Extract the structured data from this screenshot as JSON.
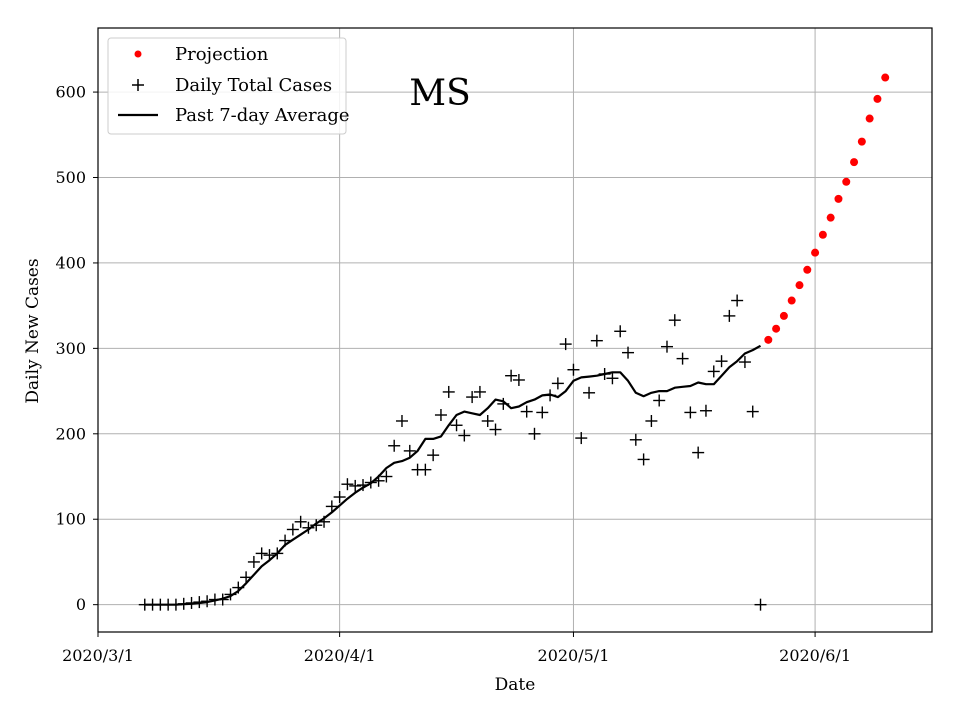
{
  "chart_data": {
    "type": "line",
    "title": "MS",
    "xlabel": "Date",
    "ylabel": "Daily New Cases",
    "x_range": [
      "2020-03-01",
      "2020-06-16"
    ],
    "ylim": [
      -32,
      675
    ],
    "x_ticks": [
      {
        "date": "2020-03-01",
        "label": "2020/3/1"
      },
      {
        "date": "2020-04-01",
        "label": "2020/4/1"
      },
      {
        "date": "2020-05-01",
        "label": "2020/5/1"
      },
      {
        "date": "2020-06-01",
        "label": "2020/6/1"
      }
    ],
    "y_ticks": [
      0,
      100,
      200,
      300,
      400,
      500,
      600
    ],
    "grid": true,
    "legend_position": "top-left",
    "colors": {
      "projection": "#ff0000",
      "daily": "#000000",
      "average": "#000000",
      "grid": "#b0b0b0"
    },
    "series": [
      {
        "name": "Projection",
        "kind": "dot",
        "x": [
          "2020-05-26",
          "2020-05-27",
          "2020-05-28",
          "2020-05-29",
          "2020-05-30",
          "2020-05-31",
          "2020-06-01",
          "2020-06-02",
          "2020-06-03",
          "2020-06-04",
          "2020-06-05",
          "2020-06-06",
          "2020-06-07",
          "2020-06-08",
          "2020-06-09",
          "2020-06-10"
        ],
        "y": [
          310,
          323,
          338,
          356,
          374,
          392,
          412,
          433,
          453,
          475,
          495,
          518,
          542,
          569,
          592,
          617
        ]
      },
      {
        "name": "Daily Total Cases",
        "kind": "plus",
        "x": [
          "2020-03-07",
          "2020-03-08",
          "2020-03-09",
          "2020-03-10",
          "2020-03-11",
          "2020-03-12",
          "2020-03-13",
          "2020-03-14",
          "2020-03-15",
          "2020-03-16",
          "2020-03-17",
          "2020-03-18",
          "2020-03-19",
          "2020-03-20",
          "2020-03-21",
          "2020-03-22",
          "2020-03-23",
          "2020-03-24",
          "2020-03-25",
          "2020-03-26",
          "2020-03-27",
          "2020-03-28",
          "2020-03-29",
          "2020-03-30",
          "2020-03-31",
          "2020-04-01",
          "2020-04-02",
          "2020-04-03",
          "2020-04-04",
          "2020-04-05",
          "2020-04-06",
          "2020-04-07",
          "2020-04-08",
          "2020-04-09",
          "2020-04-10",
          "2020-04-11",
          "2020-04-12",
          "2020-04-13",
          "2020-04-14",
          "2020-04-15",
          "2020-04-16",
          "2020-04-17",
          "2020-04-18",
          "2020-04-19",
          "2020-04-20",
          "2020-04-21",
          "2020-04-22",
          "2020-04-23",
          "2020-04-24",
          "2020-04-25",
          "2020-04-26",
          "2020-04-27",
          "2020-04-28",
          "2020-04-29",
          "2020-04-30",
          "2020-05-01",
          "2020-05-02",
          "2020-05-03",
          "2020-05-04",
          "2020-05-05",
          "2020-05-06",
          "2020-05-07",
          "2020-05-08",
          "2020-05-09",
          "2020-05-10",
          "2020-05-11",
          "2020-05-12",
          "2020-05-13",
          "2020-05-14",
          "2020-05-15",
          "2020-05-16",
          "2020-05-17",
          "2020-05-18",
          "2020-05-19",
          "2020-05-20",
          "2020-05-21",
          "2020-05-22",
          "2020-05-23",
          "2020-05-24",
          "2020-05-25"
        ],
        "y": [
          0,
          0,
          0,
          0,
          0,
          1,
          2,
          3,
          4,
          6,
          6,
          12,
          20,
          32,
          50,
          60,
          58,
          60,
          75,
          88,
          97,
          90,
          93,
          97,
          115,
          126,
          141,
          139,
          140,
          143,
          145,
          150,
          186,
          215,
          180,
          158,
          158,
          175,
          222,
          249,
          210,
          198,
          243,
          249,
          215,
          205,
          235,
          268,
          263,
          226,
          200,
          225,
          245,
          259,
          305,
          275,
          195,
          248,
          309,
          270,
          265,
          320,
          295,
          193,
          170,
          215,
          239,
          302,
          333,
          288,
          225,
          178,
          227,
          273,
          285,
          338,
          356,
          284,
          226,
          0
        ]
      },
      {
        "name": "Past 7-day Average",
        "kind": "line",
        "x": [
          "2020-03-07",
          "2020-03-08",
          "2020-03-09",
          "2020-03-10",
          "2020-03-11",
          "2020-03-12",
          "2020-03-13",
          "2020-03-14",
          "2020-03-15",
          "2020-03-16",
          "2020-03-17",
          "2020-03-18",
          "2020-03-19",
          "2020-03-20",
          "2020-03-21",
          "2020-03-22",
          "2020-03-23",
          "2020-03-24",
          "2020-03-25",
          "2020-03-26",
          "2020-03-27",
          "2020-03-28",
          "2020-03-29",
          "2020-03-30",
          "2020-03-31",
          "2020-04-01",
          "2020-04-02",
          "2020-04-03",
          "2020-04-04",
          "2020-04-05",
          "2020-04-06",
          "2020-04-07",
          "2020-04-08",
          "2020-04-09",
          "2020-04-10",
          "2020-04-11",
          "2020-04-12",
          "2020-04-13",
          "2020-04-14",
          "2020-04-15",
          "2020-04-16",
          "2020-04-17",
          "2020-04-18",
          "2020-04-19",
          "2020-04-20",
          "2020-04-21",
          "2020-04-22",
          "2020-04-23",
          "2020-04-24",
          "2020-04-25",
          "2020-04-26",
          "2020-04-27",
          "2020-04-28",
          "2020-04-29",
          "2020-04-30",
          "2020-05-01",
          "2020-05-02",
          "2020-05-03",
          "2020-05-04",
          "2020-05-05",
          "2020-05-06",
          "2020-05-07",
          "2020-05-08",
          "2020-05-09",
          "2020-05-10",
          "2020-05-11",
          "2020-05-12",
          "2020-05-13",
          "2020-05-14",
          "2020-05-15",
          "2020-05-16",
          "2020-05-17",
          "2020-05-18",
          "2020-05-19",
          "2020-05-20",
          "2020-05-21",
          "2020-05-22",
          "2020-05-23",
          "2020-05-24",
          "2020-05-25"
        ],
        "y": [
          0,
          0,
          0,
          0,
          0,
          0.5,
          1,
          2,
          3,
          5,
          7,
          10,
          16,
          25,
          35,
          45,
          52,
          60,
          70,
          76,
          82,
          88,
          95,
          101,
          108,
          116,
          124,
          131,
          137,
          142,
          150,
          160,
          166,
          168,
          172,
          180,
          194,
          194,
          197,
          210,
          222,
          226,
          224,
          222,
          230,
          240,
          238,
          230,
          232,
          237,
          240,
          245,
          246,
          243,
          250,
          262,
          266,
          267,
          268,
          270,
          272,
          272,
          262,
          248,
          244,
          248,
          250,
          250,
          254,
          255,
          256,
          260,
          258,
          258,
          268,
          278,
          285,
          294,
          298,
          303
        ]
      }
    ]
  }
}
